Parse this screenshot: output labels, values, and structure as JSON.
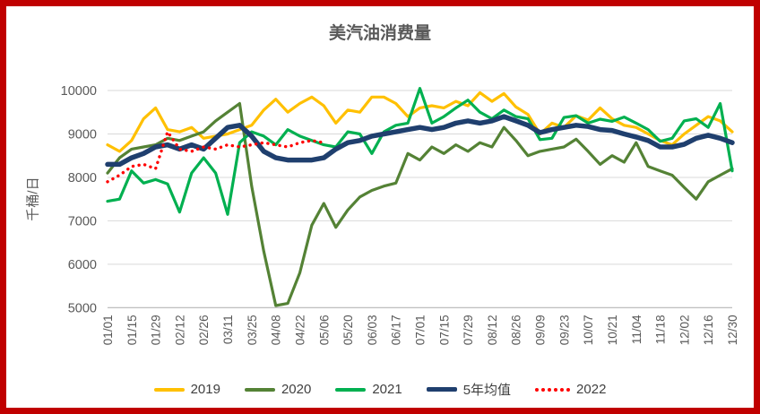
{
  "frame": {
    "border_color": "#C00000",
    "background": "#FFFFFF"
  },
  "chart_data": {
    "type": "line",
    "title": "美汽油消费量",
    "ylabel": "千桶/日",
    "ylim": [
      5000,
      10000
    ],
    "ytick_step": 1000,
    "yticks": [
      5000,
      6000,
      7000,
      8000,
      9000,
      10000
    ],
    "grid": true,
    "legend_position": "bottom",
    "axis_color": "#595959",
    "gridline_color": "#D9D9D9",
    "axis_line_color": "#BFBFBF",
    "tick_every": 2,
    "x": [
      "01/01",
      "01/08",
      "01/15",
      "01/22",
      "01/29",
      "02/05",
      "02/12",
      "02/19",
      "02/26",
      "03/04",
      "03/11",
      "03/18",
      "03/25",
      "04/01",
      "04/08",
      "04/15",
      "04/22",
      "04/29",
      "05/06",
      "05/13",
      "05/20",
      "05/27",
      "06/03",
      "06/10",
      "06/17",
      "06/24",
      "07/01",
      "07/08",
      "07/15",
      "07/22",
      "07/29",
      "08/05",
      "08/12",
      "08/19",
      "08/26",
      "09/02",
      "09/09",
      "09/16",
      "09/23",
      "09/30",
      "10/07",
      "10/14",
      "10/21",
      "10/28",
      "11/04",
      "11/11",
      "11/18",
      "11/25",
      "12/02",
      "12/09",
      "12/16",
      "12/23",
      "12/30"
    ],
    "series": [
      {
        "name": "2019",
        "color": "#FFC000",
        "style": "solid",
        "width": 3.2,
        "values": [
          8750,
          8600,
          8850,
          9350,
          9600,
          9100,
          9050,
          9150,
          8900,
          8950,
          9000,
          9100,
          9200,
          9550,
          9800,
          9500,
          9700,
          9850,
          9650,
          9250,
          9550,
          9500,
          9850,
          9850,
          9700,
          9400,
          9600,
          9650,
          9600,
          9750,
          9650,
          9950,
          9750,
          9930,
          9620,
          9450,
          9000,
          9250,
          9150,
          9420,
          9320,
          9600,
          9350,
          9200,
          9150,
          9000,
          8850,
          8750,
          9000,
          9200,
          9400,
          9300,
          9050
        ]
      },
      {
        "name": "2020",
        "color": "#548235",
        "style": "solid",
        "width": 3.2,
        "values": [
          8100,
          8450,
          8650,
          8700,
          8750,
          8900,
          8850,
          8950,
          9050,
          9300,
          9500,
          9700,
          7800,
          6300,
          5050,
          5100,
          5800,
          6900,
          7400,
          6850,
          7250,
          7550,
          7700,
          7800,
          7870,
          8550,
          8400,
          8700,
          8550,
          8750,
          8600,
          8800,
          8700,
          9150,
          8850,
          8500,
          8600,
          8650,
          8700,
          8880,
          8600,
          8300,
          8500,
          8350,
          8800,
          8250,
          8150,
          8050,
          7770,
          7500,
          7900,
          8050,
          8200
        ]
      },
      {
        "name": "2021",
        "color": "#00B050",
        "style": "solid",
        "width": 3.2,
        "values": [
          7450,
          7500,
          8150,
          7870,
          7950,
          7850,
          7200,
          8100,
          8450,
          8100,
          7150,
          8800,
          9050,
          8950,
          8750,
          9100,
          8950,
          8850,
          8750,
          8700,
          9050,
          9000,
          8550,
          9050,
          9200,
          9250,
          10050,
          9250,
          9400,
          9600,
          9780,
          9500,
          9350,
          9550,
          9400,
          9350,
          8870,
          8900,
          9380,
          9420,
          9250,
          9340,
          9290,
          9390,
          9250,
          9100,
          8830,
          8900,
          9300,
          9350,
          9150,
          9700,
          8150
        ]
      },
      {
        "name": "5年均值",
        "color": "#1F3F6E",
        "style": "solid",
        "width": 5.5,
        "values": [
          8300,
          8300,
          8450,
          8550,
          8700,
          8750,
          8650,
          8750,
          8650,
          8900,
          9150,
          9200,
          8950,
          8600,
          8450,
          8400,
          8400,
          8400,
          8450,
          8650,
          8800,
          8850,
          8950,
          9000,
          9050,
          9100,
          9150,
          9100,
          9150,
          9250,
          9300,
          9250,
          9300,
          9400,
          9300,
          9200,
          9030,
          9100,
          9150,
          9200,
          9170,
          9100,
          9080,
          9000,
          8930,
          8850,
          8700,
          8700,
          8760,
          8900,
          8970,
          8900,
          8800
        ]
      },
      {
        "name": "2022",
        "color": "#FF0000",
        "style": "dotted",
        "width": 3.4,
        "values": [
          7900,
          8050,
          8250,
          8300,
          8200,
          9050,
          8650,
          8600,
          8700,
          8650,
          8750,
          8700,
          8750,
          8800,
          8750,
          8700,
          8800,
          8850,
          8800
        ]
      }
    ]
  }
}
